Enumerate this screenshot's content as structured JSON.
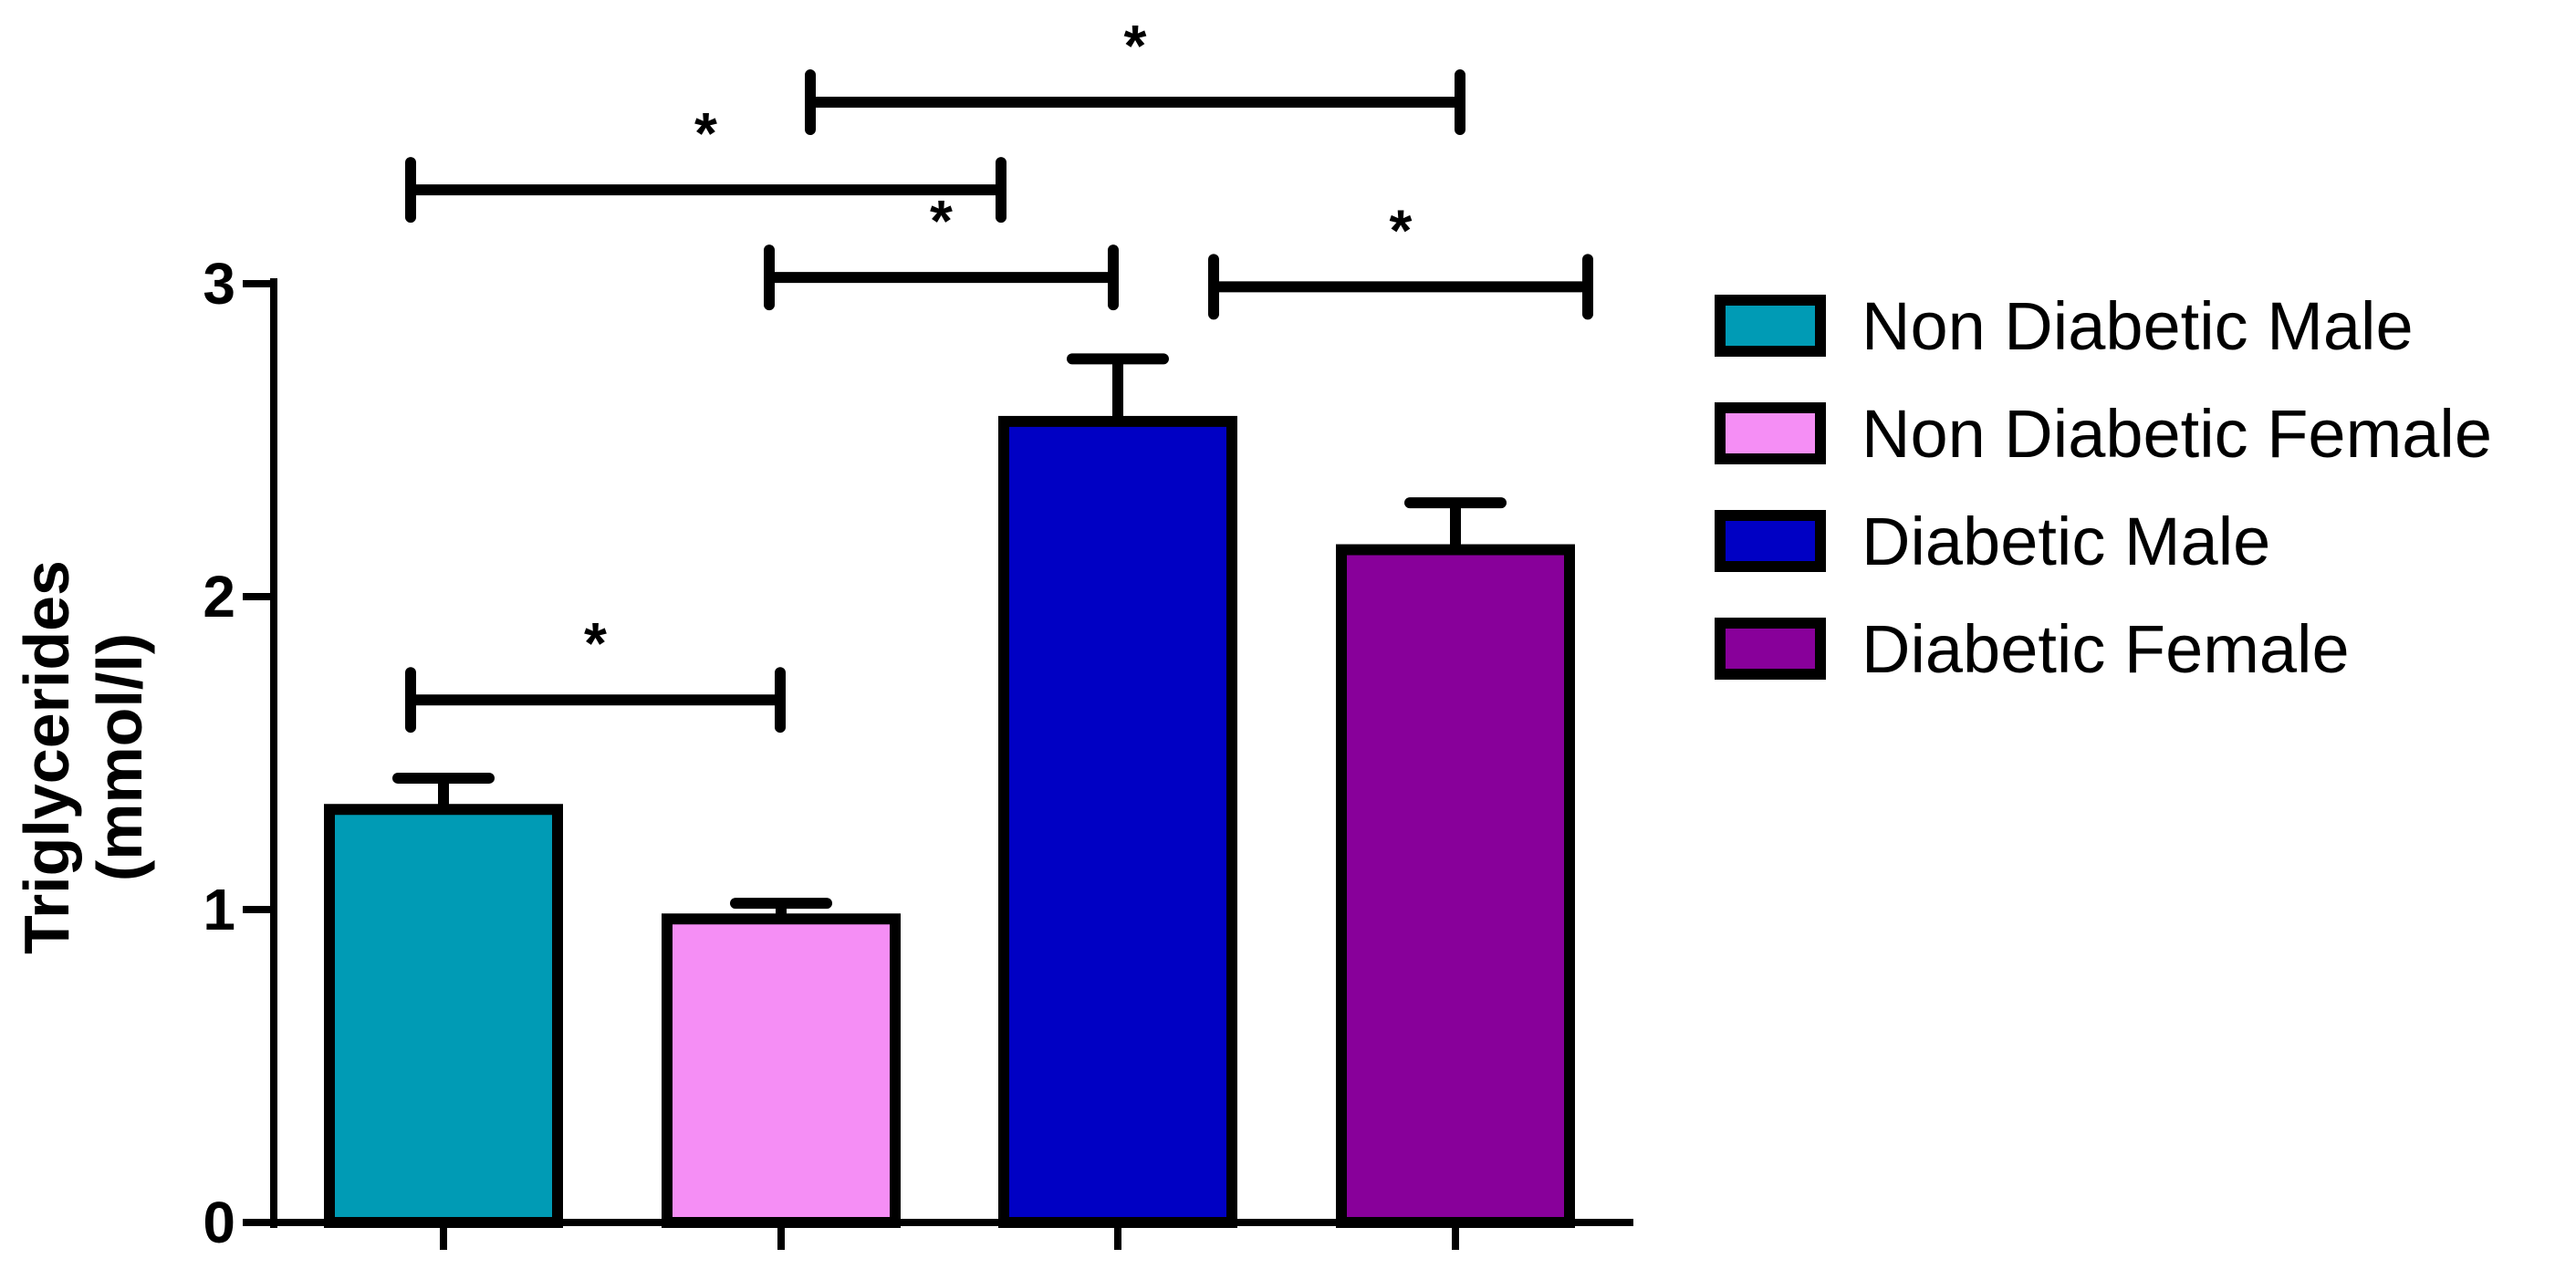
{
  "chart_data": {
    "type": "bar",
    "ylabel_line1": "Triglycerides",
    "ylabel_line2": "(mmol/l)",
    "ylim": [
      0,
      3
    ],
    "yticks": [
      "0",
      "1",
      "2",
      "3"
    ],
    "categories": [
      "Non Diabetic Male",
      "Non Diabetic Female",
      "Diabetic Male",
      "Diabetic Female"
    ],
    "values": [
      1.32,
      0.97,
      2.56,
      2.15
    ],
    "errors": [
      0.1,
      0.05,
      0.2,
      0.15
    ],
    "colors": [
      "#009BB5",
      "#F58EF5",
      "#0000C4",
      "#88009A"
    ],
    "legend_position": "right",
    "significance": [
      {
        "from": 0,
        "to": 1,
        "y": 1.67,
        "label": "*"
      },
      {
        "from": 1,
        "to": 2,
        "y": 3.02,
        "label": "*"
      },
      {
        "from": 0,
        "to": 2,
        "y": 3.3,
        "label": "*"
      },
      {
        "from": 2,
        "to": 3,
        "y": 2.99,
        "label": "*"
      },
      {
        "from": 1,
        "to": 3,
        "y": 3.58,
        "label": "*"
      }
    ]
  }
}
